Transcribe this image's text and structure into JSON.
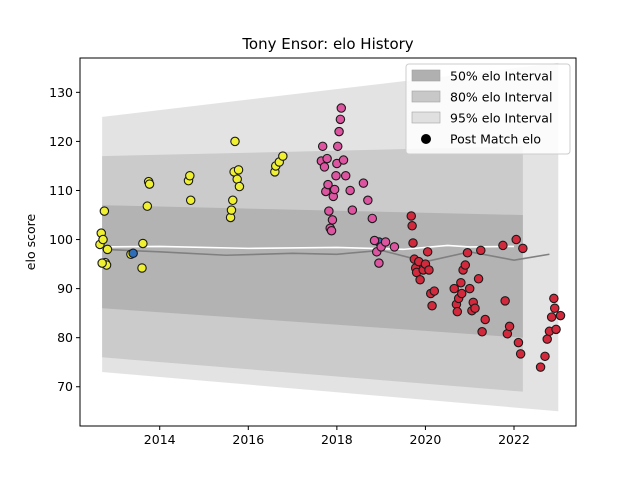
{
  "chart_data": {
    "type": "scatter",
    "title": "Tony Ensor: elo History",
    "xlabel": "",
    "ylabel": "elo score",
    "xlim": [
      2012.2,
      2023.4
    ],
    "ylim": [
      62,
      137
    ],
    "x_ticks": [
      2014,
      2016,
      2018,
      2020,
      2022
    ],
    "y_ticks": [
      70,
      80,
      90,
      100,
      110,
      120,
      130
    ],
    "grid": false,
    "legend_position": "top-right",
    "legend": [
      {
        "label": "50% elo Interval",
        "kind": "band",
        "color": "#b0b0b0"
      },
      {
        "label": "80% elo Interval",
        "kind": "band",
        "color": "#c8c8c8"
      },
      {
        "label": "95% elo Interval",
        "kind": "band",
        "color": "#e0e0e0"
      },
      {
        "label": "Post Match elo",
        "kind": "marker",
        "color": "#000000"
      }
    ],
    "bands": [
      {
        "name": "95% elo Interval",
        "color": "#e0e0e0",
        "x": [
          2012.7,
          2023.0
        ],
        "upper": [
          125,
          136
        ],
        "lower": [
          73,
          65
        ]
      },
      {
        "name": "80% elo Interval",
        "color": "#c8c8c8",
        "x": [
          2012.7,
          2022.2
        ],
        "upper": [
          117,
          119
        ],
        "lower": [
          76,
          69
        ]
      },
      {
        "name": "50% elo Interval",
        "color": "#b0b0b0",
        "x": [
          2012.7,
          2022.2
        ],
        "upper": [
          107,
          105
        ],
        "lower": [
          86,
          80
        ]
      }
    ],
    "mean_lines": [
      {
        "color": "#808080",
        "x": [
          2012.7,
          2014.0,
          2015.5,
          2017.0,
          2018.0,
          2019.0,
          2020.0,
          2021.0,
          2022.0,
          2022.8
        ],
        "y": [
          98,
          97.5,
          96.8,
          97.2,
          97.0,
          97.8,
          95.5,
          97.5,
          95.8,
          97
        ]
      },
      {
        "color": "#ffffff",
        "x": [
          2012.7,
          2014.0,
          2016.0,
          2018.0,
          2019.5,
          2020.5,
          2021.0,
          2022.0
        ],
        "y": [
          98.5,
          98.6,
          98.2,
          98.4,
          98.0,
          98.8,
          98.5,
          98.6
        ]
      }
    ],
    "series": [
      {
        "color": "#f0f032",
        "points": [
          [
            2012.65,
            99
          ],
          [
            2012.68,
            101.3
          ],
          [
            2012.72,
            100
          ],
          [
            2012.75,
            105.8
          ],
          [
            2012.77,
            95.3
          ],
          [
            2012.8,
            94.8
          ],
          [
            2012.82,
            98
          ],
          [
            2012.7,
            95.2
          ],
          [
            2013.35,
            97
          ],
          [
            2013.6,
            94.2
          ],
          [
            2013.62,
            99.2
          ],
          [
            2013.72,
            106.8
          ],
          [
            2013.75,
            111.8
          ],
          [
            2013.77,
            111.3
          ],
          [
            2014.65,
            112
          ],
          [
            2014.68,
            113
          ],
          [
            2014.7,
            108
          ],
          [
            2015.6,
            104.5
          ],
          [
            2015.62,
            106
          ],
          [
            2015.65,
            108
          ],
          [
            2015.68,
            113.8
          ],
          [
            2015.7,
            120
          ],
          [
            2015.75,
            112.3
          ],
          [
            2015.78,
            114.2
          ],
          [
            2015.8,
            110.8
          ],
          [
            2016.6,
            113.8
          ],
          [
            2016.62,
            115
          ],
          [
            2016.7,
            115.8
          ],
          [
            2016.78,
            117
          ]
        ]
      },
      {
        "color": "#2e6eb8",
        "points": [
          [
            2013.4,
            97.2
          ],
          [
            2018.95,
            99.5
          ]
        ]
      },
      {
        "color": "#dd55a0",
        "points": [
          [
            2017.65,
            116
          ],
          [
            2017.68,
            119
          ],
          [
            2017.72,
            114.8
          ],
          [
            2017.75,
            109.8
          ],
          [
            2017.78,
            116.5
          ],
          [
            2017.8,
            111.2
          ],
          [
            2017.82,
            105.8
          ],
          [
            2017.85,
            102.3
          ],
          [
            2017.88,
            101.8
          ],
          [
            2017.9,
            104
          ],
          [
            2017.92,
            108.8
          ],
          [
            2017.95,
            110.2
          ],
          [
            2017.98,
            113
          ],
          [
            2018.0,
            115.5
          ],
          [
            2018.02,
            119
          ],
          [
            2018.05,
            122
          ],
          [
            2018.08,
            124.5
          ],
          [
            2018.1,
            126.8
          ],
          [
            2018.15,
            116.2
          ],
          [
            2018.2,
            113
          ],
          [
            2018.3,
            110
          ],
          [
            2018.35,
            106
          ],
          [
            2018.6,
            111.5
          ],
          [
            2018.7,
            108
          ],
          [
            2018.8,
            104.3
          ],
          [
            2018.85,
            99.8
          ],
          [
            2018.9,
            97.5
          ],
          [
            2018.95,
            95.2
          ],
          [
            2019.0,
            98.5
          ],
          [
            2019.1,
            99.5
          ],
          [
            2019.3,
            98.5
          ]
        ]
      },
      {
        "color": "#d22a3c",
        "points": [
          [
            2019.68,
            104.8
          ],
          [
            2019.7,
            102.8
          ],
          [
            2019.72,
            99.3
          ],
          [
            2019.75,
            96
          ],
          [
            2019.78,
            94.2
          ],
          [
            2019.8,
            93.3
          ],
          [
            2019.85,
            95.5
          ],
          [
            2019.88,
            91.8
          ],
          [
            2019.95,
            93.8
          ],
          [
            2020.0,
            95
          ],
          [
            2020.05,
            97.5
          ],
          [
            2020.08,
            93.8
          ],
          [
            2020.12,
            89
          ],
          [
            2020.15,
            86.5
          ],
          [
            2020.2,
            89.5
          ],
          [
            2020.65,
            90
          ],
          [
            2020.7,
            86.8
          ],
          [
            2020.72,
            85.3
          ],
          [
            2020.75,
            88
          ],
          [
            2020.8,
            91.2
          ],
          [
            2020.82,
            89
          ],
          [
            2020.85,
            93.8
          ],
          [
            2020.9,
            94.8
          ],
          [
            2020.95,
            97.3
          ],
          [
            2021.0,
            90
          ],
          [
            2021.05,
            85.5
          ],
          [
            2021.08,
            87.2
          ],
          [
            2021.12,
            86
          ],
          [
            2021.2,
            92
          ],
          [
            2021.25,
            97.8
          ],
          [
            2021.28,
            81.2
          ],
          [
            2021.35,
            83.7
          ],
          [
            2021.75,
            98.8
          ],
          [
            2021.8,
            87.5
          ],
          [
            2021.85,
            80.8
          ],
          [
            2021.9,
            82.3
          ],
          [
            2022.05,
            100
          ],
          [
            2022.1,
            79
          ],
          [
            2022.15,
            76.7
          ],
          [
            2022.2,
            98.2
          ],
          [
            2022.6,
            74
          ],
          [
            2022.7,
            76.2
          ],
          [
            2022.75,
            79.7
          ],
          [
            2022.8,
            81.3
          ],
          [
            2022.85,
            84.2
          ],
          [
            2022.9,
            88
          ],
          [
            2022.92,
            86
          ],
          [
            2022.95,
            81.7
          ],
          [
            2023.05,
            84.5
          ]
        ]
      }
    ]
  }
}
